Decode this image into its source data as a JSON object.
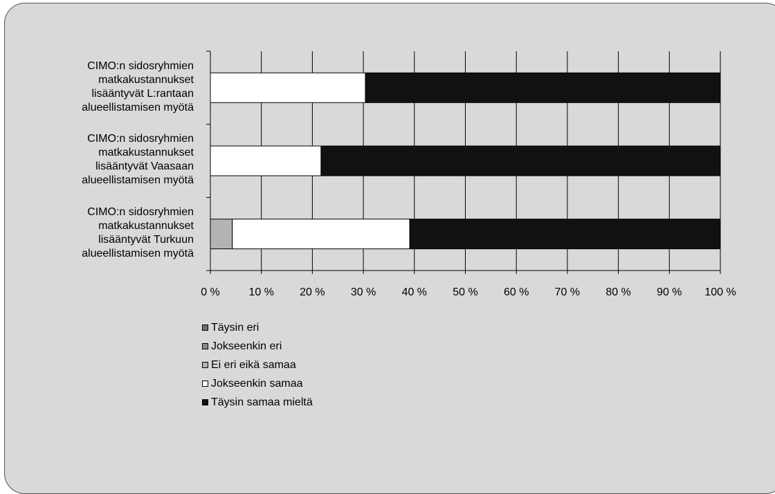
{
  "chart_data": {
    "type": "bar",
    "orientation": "horizontal",
    "stacked": "percent",
    "categories": [
      "CIMO:n sidosryhmien\nmatkakustannukset\nlisääntyvät L:rantaan\nalueellistamisen myötä",
      "CIMO:n sidosryhmien\nmatkakustannukset\nlisääntyvät Vaasaan\nalueellistamisen myötä",
      "CIMO:n sidosryhmien\nmatkakustannukset\nlisääntyvät Turkuun\nalueellistamisen myötä"
    ],
    "series": [
      {
        "name": "Täysin eri",
        "color": "#6e6e6e",
        "values": [
          0,
          0,
          0
        ]
      },
      {
        "name": "Jokseenkin eri",
        "color": "#8c8c8c",
        "values": [
          0,
          0,
          0
        ]
      },
      {
        "name": "Ei eri eikä samaa",
        "color": "#b3b3b3",
        "values": [
          0,
          0,
          4.3
        ]
      },
      {
        "name": "Jokseenkin samaa",
        "color": "#ffffff",
        "values": [
          30.4,
          21.7,
          34.8
        ]
      },
      {
        "name": "Täysin samaa mieltä",
        "color": "#111111",
        "values": [
          69.6,
          78.3,
          60.9
        ]
      }
    ],
    "xlim": [
      0,
      100
    ],
    "xticks": [
      "0 %",
      "10 %",
      "20 %",
      "30 %",
      "40 %",
      "50 %",
      "60 %",
      "70 %",
      "80 %",
      "90 %",
      "100 %"
    ],
    "grid": true,
    "legend_position": "bottom-left"
  }
}
